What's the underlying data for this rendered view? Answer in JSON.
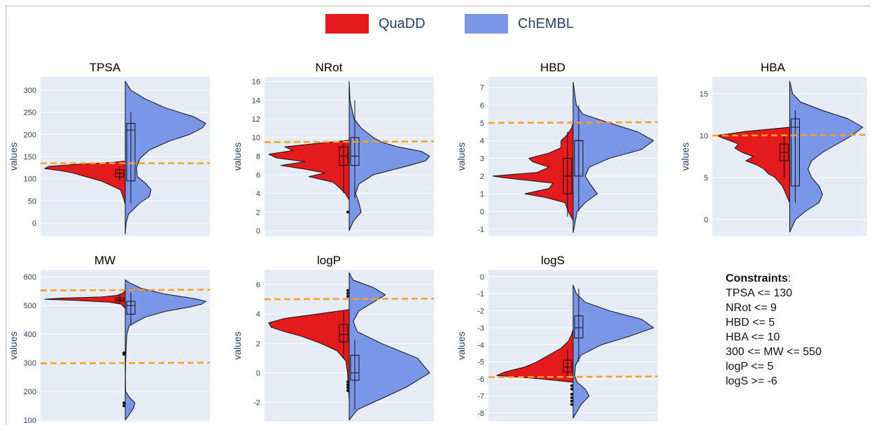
{
  "legend": [
    {
      "name": "QuaDD",
      "color": "#e41a1c"
    },
    {
      "name": "ChEMBL",
      "color": "#7b96e6"
    }
  ],
  "constraints": {
    "title": "Constraints",
    "lines": [
      "TPSA <= 130",
      "NRot <= 9",
      "HBD <= 5",
      "HBA <= 10",
      "300 <= MW <= 550",
      "logP <= 5",
      "logS >= -6"
    ]
  },
  "chart_data": [
    {
      "type": "violin",
      "title": "TPSA",
      "ylabel": "values",
      "ylim": [
        -30,
        330
      ],
      "yticks": [
        0,
        50,
        100,
        150,
        200,
        250,
        300
      ],
      "threshold": [
        135
      ],
      "series": [
        {
          "name": "QuaDD",
          "side": "negative",
          "density_y": [
            42,
            55,
            75,
            95,
            105,
            113,
            118,
            123,
            128,
            133,
            137,
            140
          ],
          "density_w": [
            0,
            0.02,
            0.06,
            0.3,
            0.5,
            0.65,
            0.8,
            1.0,
            0.95,
            0.55,
            0.15,
            0
          ],
          "box": {
            "q1": 104,
            "median": 112,
            "q3": 120,
            "lowerfence": 96,
            "upperfence": 126
          }
        },
        {
          "name": "ChEMBL",
          "side": "positive",
          "density_y": [
            -25,
            0,
            20,
            45,
            60,
            75,
            90,
            105,
            125,
            145,
            165,
            185,
            200,
            215,
            225,
            240,
            260,
            280,
            300,
            320
          ],
          "density_w": [
            0,
            0.01,
            0.04,
            0.18,
            0.3,
            0.32,
            0.25,
            0.15,
            0.14,
            0.18,
            0.3,
            0.55,
            0.8,
            0.96,
            1.0,
            0.85,
            0.5,
            0.25,
            0.07,
            0
          ],
          "box": {
            "q1": 95,
            "median": 210,
            "q3": 225,
            "lowerfence": 45,
            "upperfence": 250
          }
        }
      ]
    },
    {
      "type": "violin",
      "title": "NRot",
      "ylabel": "values",
      "ylim": [
        -0.6,
        16.5
      ],
      "yticks": [
        0,
        2,
        4,
        6,
        8,
        10,
        12,
        14,
        16
      ],
      "threshold": [
        9.5
      ],
      "series": [
        {
          "name": "QuaDD",
          "side": "negative",
          "density_y": [
            3.3,
            4,
            4.6,
            5.2,
            5.8,
            6.2,
            6.6,
            7,
            7.4,
            7.8,
            8.2,
            8.6,
            9,
            9.4,
            9.7
          ],
          "density_w": [
            0,
            0.05,
            0.12,
            0.2,
            0.5,
            0.3,
            0.55,
            0.85,
            0.55,
            0.9,
            1.0,
            0.7,
            0.8,
            0.35,
            0
          ],
          "box": {
            "q1": 7,
            "median": 8,
            "q3": 9,
            "lowerfence": 4,
            "upperfence": 9.5
          },
          "outliers": [
            2
          ]
        },
        {
          "name": "ChEMBL",
          "side": "positive",
          "density_y": [
            0,
            1,
            2,
            3,
            4,
            5,
            6,
            7,
            7.5,
            8,
            8.5,
            9,
            9.5,
            10,
            11,
            12,
            14,
            16
          ],
          "density_w": [
            0,
            0.05,
            0.15,
            0.12,
            0.08,
            0.12,
            0.3,
            0.75,
            0.95,
            1.0,
            0.9,
            0.6,
            0.4,
            0.3,
            0.15,
            0.06,
            0.01,
            0
          ],
          "box": {
            "q1": 7,
            "median": 8,
            "q3": 10,
            "lowerfence": 3.5,
            "upperfence": 14
          }
        }
      ]
    },
    {
      "type": "violin",
      "title": "HBD",
      "ylabel": "values",
      "ylim": [
        -1.4,
        7.6
      ],
      "yticks": [
        -1,
        0,
        1,
        2,
        3,
        4,
        5,
        6,
        7
      ],
      "threshold": [
        5
      ],
      "series": [
        {
          "name": "QuaDD",
          "side": "negative",
          "density_y": [
            -0.5,
            0,
            0.5,
            0.8,
            1,
            1.3,
            1.6,
            1.9,
            2,
            2.2,
            2.5,
            2.8,
            3,
            3.3,
            3.6,
            4,
            4.3,
            4.7,
            5
          ],
          "density_w": [
            0,
            0.06,
            0.1,
            0.35,
            0.6,
            0.3,
            0.25,
            0.85,
            1.0,
            0.45,
            0.3,
            0.5,
            0.55,
            0.3,
            0.15,
            0.15,
            0.08,
            0.02,
            0
          ],
          "box": {
            "q1": 1,
            "median": 2,
            "q3": 3,
            "lowerfence": -0.3,
            "upperfence": 4.5
          }
        },
        {
          "name": "ChEMBL",
          "side": "positive",
          "density_y": [
            -1.2,
            0,
            0.5,
            1,
            1.5,
            2,
            2.5,
            3,
            3.5,
            4,
            4.5,
            5,
            5.5,
            6,
            7,
            7.3
          ],
          "density_w": [
            0,
            0.05,
            0.15,
            0.3,
            0.22,
            0.15,
            0.2,
            0.45,
            0.85,
            1.0,
            0.8,
            0.45,
            0.12,
            0.04,
            0.01,
            0
          ],
          "box": {
            "q1": 2,
            "median": 4,
            "q3": 4,
            "lowerfence": 0,
            "upperfence": 6
          }
        }
      ]
    },
    {
      "type": "violin",
      "title": "HBA",
      "ylabel": "values",
      "ylim": [
        -2,
        17
      ],
      "yticks": [
        0,
        5,
        10,
        15
      ],
      "threshold": [
        10
      ],
      "series": [
        {
          "name": "QuaDD",
          "side": "negative",
          "density_y": [
            2,
            3,
            4,
            5,
            5.5,
            6,
            6.5,
            7,
            7.5,
            8,
            8.5,
            9,
            9.5,
            10,
            10.5,
            11
          ],
          "density_w": [
            0,
            0.05,
            0.1,
            0.2,
            0.3,
            0.35,
            0.45,
            0.6,
            0.5,
            0.65,
            0.75,
            0.7,
            0.85,
            1.0,
            0.6,
            0
          ],
          "box": {
            "q1": 7,
            "median": 8,
            "q3": 9,
            "lowerfence": 5,
            "upperfence": 10
          }
        },
        {
          "name": "ChEMBL",
          "side": "positive",
          "density_y": [
            -1.5,
            0,
            1,
            2,
            3,
            4,
            5,
            6,
            7,
            8,
            9,
            10,
            11,
            12,
            13,
            14,
            15,
            16.5
          ],
          "density_w": [
            0,
            0.08,
            0.22,
            0.4,
            0.45,
            0.4,
            0.3,
            0.25,
            0.3,
            0.45,
            0.65,
            0.85,
            1.0,
            0.8,
            0.45,
            0.15,
            0.04,
            0
          ],
          "box": {
            "q1": 4,
            "median": 11,
            "q3": 12,
            "lowerfence": 2,
            "upperfence": 13
          }
        }
      ]
    },
    {
      "type": "violin",
      "title": "MW",
      "ylabel": "values",
      "ylim": [
        95,
        625
      ],
      "yticks": [
        100,
        200,
        300,
        400,
        500,
        600
      ],
      "threshold": [
        553,
        298
      ],
      "series": [
        {
          "name": "QuaDD",
          "side": "negative",
          "density_y": [
            490,
            505,
            512,
            518,
            522,
            526,
            530,
            536,
            545,
            560
          ],
          "density_w": [
            0,
            0.05,
            0.2,
            0.6,
            1.0,
            0.8,
            0.3,
            0.1,
            0.02,
            0
          ],
          "box": {
            "q1": 515,
            "median": 520,
            "q3": 527,
            "lowerfence": 505,
            "upperfence": 540
          },
          "outliers": [
            160,
            150,
            335,
            330
          ]
        },
        {
          "name": "ChEMBL",
          "side": "positive",
          "density_y": [
            100,
            120,
            140,
            160,
            180,
            200,
            250,
            300,
            350,
            400,
            430,
            460,
            480,
            495,
            505,
            515,
            525,
            540,
            560,
            580,
            590
          ],
          "density_w": [
            0,
            0.05,
            0.1,
            0.12,
            0.05,
            0.005,
            0.002,
            0.005,
            0.01,
            0.02,
            0.05,
            0.25,
            0.5,
            0.8,
            0.95,
            1.0,
            0.85,
            0.5,
            0.2,
            0.05,
            0
          ],
          "box": {
            "q1": 470,
            "median": 500,
            "q3": 515,
            "lowerfence": 430,
            "upperfence": 545
          }
        }
      ]
    },
    {
      "type": "violin",
      "title": "logP",
      "ylabel": "values",
      "ylim": [
        -3.3,
        7
      ],
      "yticks": [
        -2,
        0,
        2,
        4,
        6
      ],
      "threshold": [
        5
      ],
      "series": [
        {
          "name": "QuaDD",
          "side": "negative",
          "density_y": [
            -1.8,
            -1,
            0,
            0.8,
            1.5,
            2,
            2.5,
            2.8,
            3.1,
            3.4,
            3.7,
            4.0,
            4.3
          ],
          "density_w": [
            0,
            0.01,
            0.02,
            0.04,
            0.15,
            0.35,
            0.6,
            0.8,
            0.97,
            1.0,
            0.8,
            0.4,
            0
          ],
          "box": {
            "q1": 2.1,
            "median": 2.6,
            "q3": 3.3,
            "lowerfence": 1.0,
            "upperfence": 4.2
          },
          "outliers": [
            5.2,
            5.4,
            5.6,
            -0.6,
            -0.8,
            -1.0,
            -1.2
          ]
        },
        {
          "name": "ChEMBL",
          "side": "positive",
          "density_y": [
            -3.2,
            -2.5,
            -2,
            -1,
            0,
            1,
            2,
            2.8,
            3.5,
            4.2,
            4.8,
            5.3,
            5.8,
            6.3,
            6.8
          ],
          "density_w": [
            0,
            0.1,
            0.3,
            0.7,
            1.0,
            0.85,
            0.4,
            0.1,
            0.05,
            0.12,
            0.3,
            0.45,
            0.3,
            0.05,
            0
          ],
          "box": {
            "q1": -0.5,
            "median": 0,
            "q3": 1.2,
            "lowerfence": -2.5,
            "upperfence": 2.2
          }
        }
      ]
    },
    {
      "type": "violin",
      "title": "logS",
      "ylabel": "values",
      "ylim": [
        -8.5,
        0.4
      ],
      "yticks": [
        -8,
        -7,
        -6,
        -5,
        -4,
        -3,
        -2,
        -1,
        0
      ],
      "threshold": [
        -5.9
      ],
      "series": [
        {
          "name": "QuaDD",
          "side": "negative",
          "density_y": [
            -6.2,
            -6.0,
            -5.8,
            -5.6,
            -5.3,
            -5.0,
            -4.6,
            -4.2,
            -3.8,
            -3.4,
            -3.1
          ],
          "density_w": [
            0,
            0.4,
            0.95,
            0.85,
            0.6,
            0.45,
            0.3,
            0.15,
            0.06,
            0.02,
            0
          ],
          "box": {
            "q1": -5.6,
            "median": -5.3,
            "q3": -4.9,
            "lowerfence": -5.9,
            "upperfence": -4.3
          },
          "outliers": [
            -6.4,
            -6.6,
            -6.9,
            -7.1,
            -7.3,
            -7.5
          ]
        },
        {
          "name": "ChEMBL",
          "side": "positive",
          "density_y": [
            -8.3,
            -7.5,
            -7.0,
            -6.6,
            -6.2,
            -5.8,
            -5.2,
            -4.6,
            -4.0,
            -3.5,
            -3.0,
            -2.5,
            -2.0,
            -1.5,
            -1.0,
            -0.5
          ],
          "density_w": [
            0,
            0.1,
            0.2,
            0.15,
            0.05,
            0.02,
            0.03,
            0.1,
            0.35,
            0.7,
            1.0,
            0.85,
            0.45,
            0.15,
            0.04,
            0
          ],
          "box": {
            "q1": -3.6,
            "median": -3.0,
            "q3": -2.3,
            "lowerfence": -5.0,
            "upperfence": -0.7
          }
        }
      ]
    }
  ]
}
